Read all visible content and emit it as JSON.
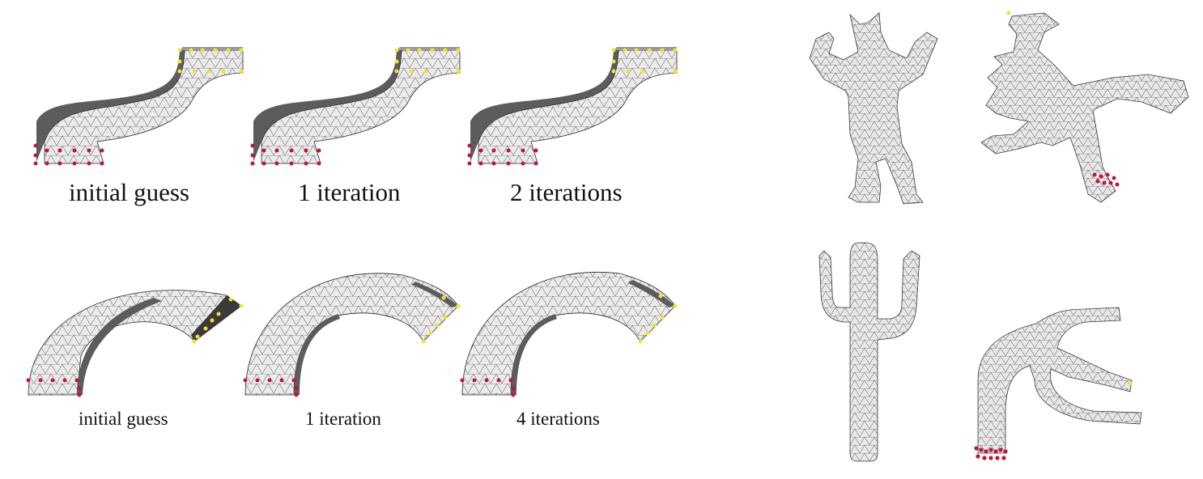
{
  "colors": {
    "mesh_fill": "#ebebeb",
    "mesh_side": "#6e6e6e",
    "mesh_line": "#2a2a2a",
    "fixed_points": "#c0143c",
    "handle_points": "#f0e628",
    "background": "#ffffff"
  },
  "row_top": {
    "captions": [
      "initial guess",
      "1 iteration",
      "2 iterations"
    ]
  },
  "row_bottom": {
    "captions": [
      "initial guess",
      "1 iteration",
      "4 iterations"
    ]
  },
  "models": [
    "armadillo-mesh",
    "armadillo-deformed-mesh",
    "cactus-mesh",
    "cactus-deformed-mesh"
  ]
}
